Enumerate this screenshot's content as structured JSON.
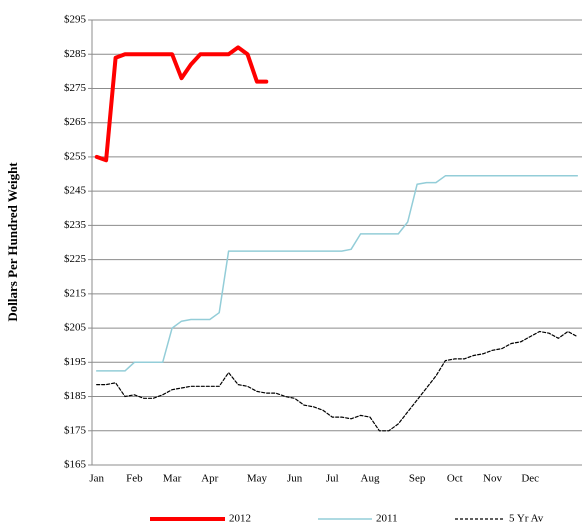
{
  "chart_data": {
    "type": "line",
    "y_label": "Dollars Per Hundred Weight",
    "categories": [
      "Jan",
      null,
      null,
      null,
      "Feb",
      null,
      null,
      null,
      "Mar",
      null,
      null,
      null,
      "Apr",
      null,
      null,
      null,
      null,
      "May",
      null,
      null,
      null,
      "Jun",
      null,
      null,
      null,
      "Jul",
      null,
      null,
      null,
      "Aug",
      null,
      null,
      null,
      null,
      "Sep",
      null,
      null,
      null,
      "Oct",
      null,
      null,
      null,
      "Nov",
      null,
      null,
      null,
      "Dec",
      null,
      null,
      null,
      null,
      null
    ],
    "series": [
      {
        "name": "2012",
        "color": "#ff0000",
        "width": 4,
        "style": "solid",
        "values": [
          255,
          254,
          284,
          285,
          285,
          285,
          285,
          285,
          285,
          278,
          282,
          285,
          285,
          285,
          285,
          287,
          285,
          277,
          277,
          null,
          null,
          null,
          null,
          null,
          null,
          null,
          null,
          null,
          null,
          null,
          null,
          null,
          null,
          null,
          null,
          null,
          null,
          null,
          null,
          null,
          null,
          null,
          null,
          null,
          null,
          null,
          null,
          null,
          null,
          null,
          null,
          null
        ]
      },
      {
        "name": "2011",
        "color": "#93cdd8",
        "width": 1.5,
        "style": "solid",
        "values": [
          192.5,
          192.5,
          192.5,
          192.5,
          195,
          195,
          195,
          195,
          205,
          207,
          207.5,
          207.5,
          207.5,
          209.5,
          227.5,
          227.5,
          227.5,
          227.5,
          227.5,
          227.5,
          227.5,
          227.5,
          227.5,
          227.5,
          227.5,
          227.5,
          227.5,
          228,
          232.5,
          232.5,
          232.5,
          232.5,
          232.5,
          236,
          247,
          247.5,
          247.5,
          249.5,
          249.5,
          249.5,
          249.5,
          249.5,
          249.5,
          249.5,
          249.5,
          249.5,
          249.5,
          249.5,
          249.5,
          249.5,
          249.5,
          249.5
        ]
      },
      {
        "name": "5 Yr Av",
        "color": "#000000",
        "width": 1.2,
        "style": "dashed",
        "values": [
          188.5,
          188.5,
          189,
          185,
          185.5,
          184.5,
          184.5,
          185.5,
          187,
          187.5,
          188,
          188,
          188,
          188,
          192,
          188.5,
          188,
          186.5,
          186,
          186,
          185,
          184.5,
          182.5,
          182,
          181,
          179,
          179,
          178.5,
          179.5,
          179,
          175,
          175,
          177,
          180.5,
          184,
          187.5,
          191,
          195.5,
          196,
          196,
          197,
          197.5,
          198.5,
          199,
          200.5,
          201,
          202.5,
          204,
          203.5,
          202,
          204,
          202.5
        ]
      }
    ],
    "ylim": [
      165,
      295
    ],
    "yticks": [
      {
        "value": 165,
        "label": "$165"
      },
      {
        "value": 175,
        "label": "$175"
      },
      {
        "value": 185,
        "label": "$185"
      },
      {
        "value": 195,
        "label": "$195"
      },
      {
        "value": 205,
        "label": "$205"
      },
      {
        "value": 215,
        "label": "$215"
      },
      {
        "value": 225,
        "label": "$225"
      },
      {
        "value": 235,
        "label": "$235"
      },
      {
        "value": 245,
        "label": "$245"
      },
      {
        "value": 255,
        "label": "$255"
      },
      {
        "value": 265,
        "label": "$265"
      },
      {
        "value": 275,
        "label": "$275"
      },
      {
        "value": 285,
        "label": "$285"
      },
      {
        "value": 295,
        "label": "$295"
      }
    ],
    "grid": true,
    "legend": "bottom"
  }
}
